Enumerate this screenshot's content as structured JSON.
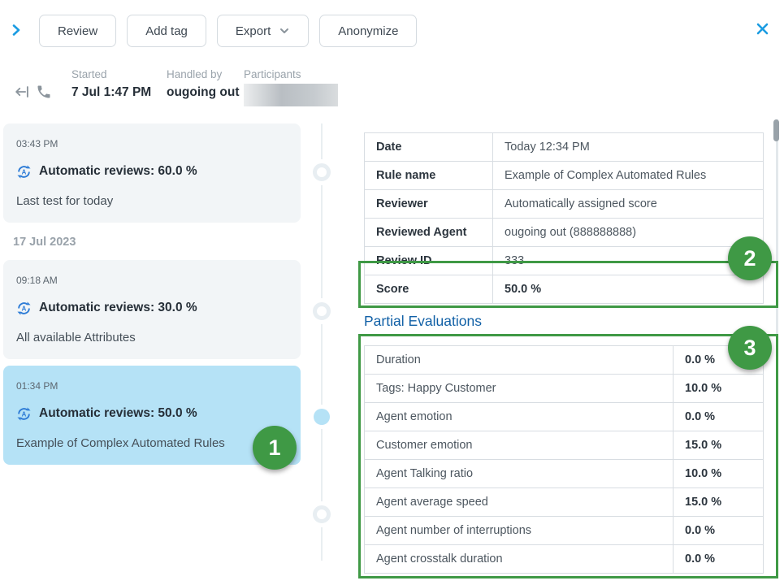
{
  "colors": {
    "accent_blue": "#1b9ce2",
    "icon_blue": "#2e7cd6",
    "selected_blue": "#b5e2f6",
    "annotation_green": "#3f9945",
    "heading_blue": "#1160a6"
  },
  "toolbar": {
    "buttons": [
      {
        "label": "Review"
      },
      {
        "label": "Add tag"
      },
      {
        "label": "Export",
        "has_dropdown": true
      },
      {
        "label": "Anonymize"
      }
    ]
  },
  "header": {
    "fields": [
      {
        "label": "Started",
        "value": "7 Jul 1:47 PM"
      },
      {
        "label": "Handled by",
        "value": "ougoing out"
      },
      {
        "label": "Participants",
        "value": "",
        "redacted": true
      }
    ]
  },
  "timeline": {
    "items": [
      {
        "type": "review",
        "time": "03:43 PM",
        "title": "Automatic reviews: 60.0 %",
        "description": "Last test for today",
        "selected": false
      },
      {
        "type": "divider",
        "label": "17 Jul 2023"
      },
      {
        "type": "review",
        "time": "09:18 AM",
        "title": "Automatic reviews: 30.0 %",
        "description": "All available Attributes",
        "selected": false
      },
      {
        "type": "review",
        "time": "01:34 PM",
        "title": "Automatic reviews: 50.0 %",
        "description": "Example of Complex Automated Rules",
        "selected": true
      }
    ]
  },
  "details": {
    "info_table": {
      "rows": [
        {
          "label": "Date",
          "value": "Today 12:34 PM"
        },
        {
          "label": "Rule name",
          "value": "Example of Complex Automated Rules"
        },
        {
          "label": "Reviewer",
          "value": "Automatically assigned score"
        },
        {
          "label": "Reviewed Agent",
          "value": "ougoing out (888888888)"
        },
        {
          "label": "Review ID",
          "value": "333"
        },
        {
          "label": "Score",
          "value": "50.0 %",
          "highlighted": true
        }
      ]
    },
    "partial_evaluations": {
      "heading": "Partial Evaluations",
      "rows": [
        {
          "label": "Duration",
          "value": "0.0 %"
        },
        {
          "label": "Tags: Happy Customer",
          "value": "10.0 %"
        },
        {
          "label": "Agent emotion",
          "value": "0.0 %"
        },
        {
          "label": "Customer emotion",
          "value": "15.0 %"
        },
        {
          "label": "Agent Talking ratio",
          "value": "10.0 %"
        },
        {
          "label": "Agent average speed",
          "value": "15.0 %"
        },
        {
          "label": "Agent number of interruptions",
          "value": "0.0 %"
        },
        {
          "label": "Agent crosstalk duration",
          "value": "0.0 %"
        }
      ]
    }
  },
  "annotations": {
    "badges": [
      "1",
      "2",
      "3"
    ]
  }
}
